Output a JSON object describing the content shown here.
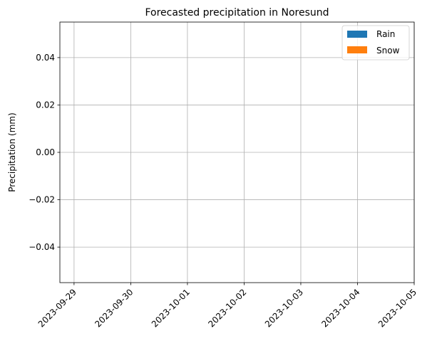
{
  "chart_data": {
    "type": "bar",
    "title": "Forecasted precipitation in Noresund",
    "xlabel": "",
    "ylabel": "Precipitation (mm)",
    "ylim": [
      -0.055,
      0.055
    ],
    "xlim": [
      "2023-09-28 18:00",
      "2023-10-05 00:00"
    ],
    "yticks": [
      -0.04,
      -0.02,
      0.0,
      0.02,
      0.04
    ],
    "ytick_labels": [
      "−0.04",
      "−0.02",
      "0.00",
      "0.02",
      "0.04"
    ],
    "xticks": [
      "2023-09-29",
      "2023-09-30",
      "2023-10-01",
      "2023-10-02",
      "2023-10-03",
      "2023-10-04",
      "2023-10-05"
    ],
    "grid": true,
    "legend_position": "top-right",
    "series": [
      {
        "name": "Rain",
        "color": "#1f77b4",
        "values": []
      },
      {
        "name": "Snow",
        "color": "#ff7f0e",
        "values": []
      }
    ]
  }
}
